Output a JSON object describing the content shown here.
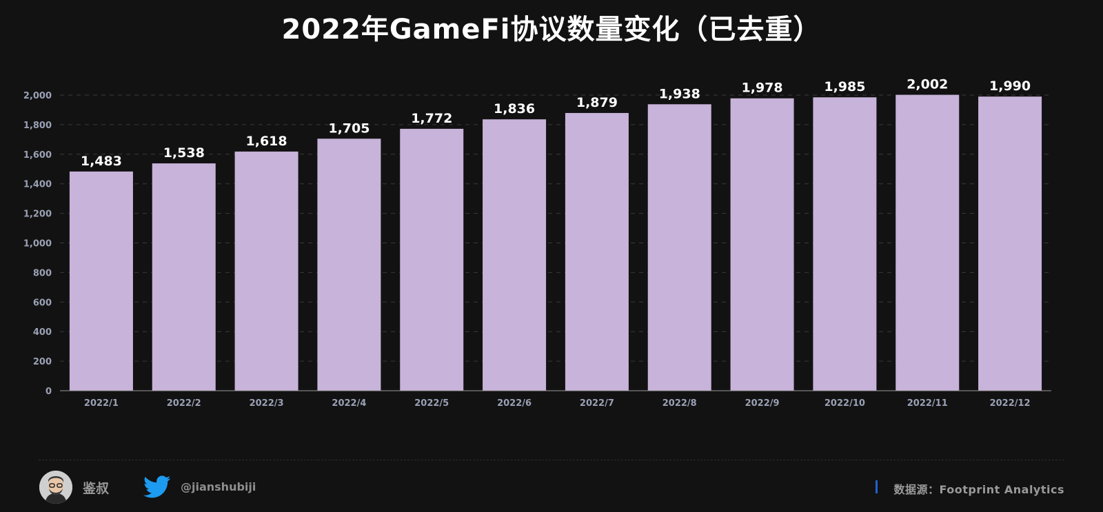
{
  "title": "2022年GameFi协议数量变化（已去重）",
  "footer": {
    "author": "鉴叔",
    "handle": "@jianshubiji",
    "source": "数据源：Footprint  Analytics"
  },
  "colors": {
    "background": "#121212",
    "bar": "#c8b3da",
    "grid": "#3a3a3a",
    "tick_label": "#9aa1b5",
    "data_label": "#ffffff",
    "twitter_blue": "#1d9bf0",
    "source_accent": "#1f63c9"
  },
  "icons": [
    "avatar-image",
    "twitter-bird-icon"
  ],
  "chart_data": {
    "type": "bar",
    "categories": [
      "2022/1",
      "2022/2",
      "2022/3",
      "2022/4",
      "2022/5",
      "2022/6",
      "2022/7",
      "2022/8",
      "2022/9",
      "2022/10",
      "2022/11",
      "2022/12"
    ],
    "values": [
      1483,
      1538,
      1618,
      1705,
      1772,
      1836,
      1879,
      1938,
      1978,
      1985,
      2002,
      1990
    ],
    "value_labels": [
      "1,483",
      "1,538",
      "1,618",
      "1,705",
      "1,772",
      "1,836",
      "1,879",
      "1,938",
      "1,978",
      "1,985",
      "2,002",
      "1,990"
    ],
    "ylim": [
      0,
      2000
    ],
    "yticks": [
      0,
      200,
      400,
      600,
      800,
      1000,
      1200,
      1400,
      1600,
      1800,
      2000
    ],
    "ytick_labels": [
      "0",
      "200",
      "400",
      "600",
      "800",
      "1,000",
      "1,200",
      "1,400",
      "1,600",
      "1,800",
      "2,000"
    ],
    "grid": true,
    "legend": "none"
  }
}
